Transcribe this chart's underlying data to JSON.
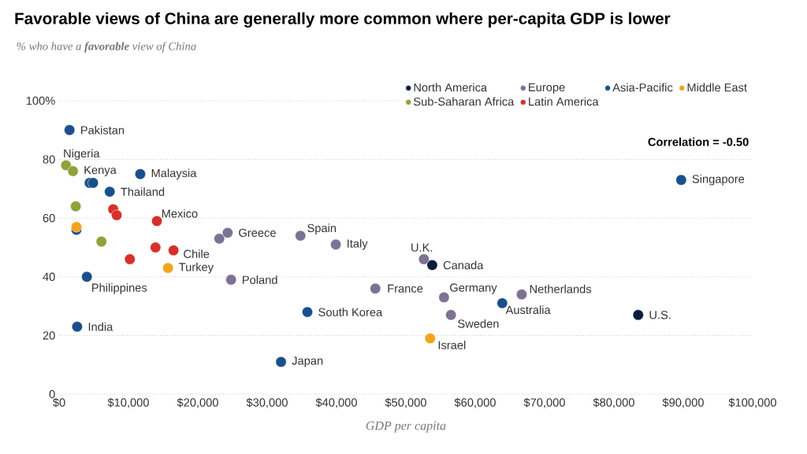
{
  "chart_data": {
    "type": "scatter",
    "title": "Favorable views of China are generally more common where per-capita GDP is lower",
    "subtitle": "% who have a **favorable** view of China",
    "xlabel": "GDP per capita",
    "xlim": [
      0,
      100000
    ],
    "xticks": [
      {
        "value": 0,
        "label": "$0"
      },
      {
        "value": 10000,
        "label": "$10,000"
      },
      {
        "value": 20000,
        "label": "$20,000"
      },
      {
        "value": 30000,
        "label": "$30,000"
      },
      {
        "value": 40000,
        "label": "$40,000"
      },
      {
        "value": 50000,
        "label": "$50,000"
      },
      {
        "value": 60000,
        "label": "$60,000"
      },
      {
        "value": 70000,
        "label": "$70,000"
      },
      {
        "value": 80000,
        "label": "$80,000"
      },
      {
        "value": 90000,
        "label": "$90,000"
      },
      {
        "value": 100000,
        "label": "$100,000"
      }
    ],
    "ylim": [
      0,
      100
    ],
    "yticks": [
      0,
      20,
      40,
      60,
      80,
      {
        "value": 100,
        "label": "100%"
      }
    ],
    "grid": "y",
    "legend": "top right",
    "series": [
      {
        "name": "North America",
        "color": "#0c1d3c",
        "x": [
          53800,
          83500
        ],
        "values": [
          44,
          27
        ]
      },
      {
        "name": "Europe",
        "color": "#7d7194",
        "x": [
          52600,
          23100,
          24300,
          34800,
          39900,
          24800,
          45600,
          55500,
          56500,
          66700
        ],
        "values": [
          46,
          53,
          55,
          54,
          51,
          39,
          36,
          33,
          27,
          34
        ]
      },
      {
        "name": "Asia-Pacific",
        "color": "#1a4f8c",
        "x": [
          1500,
          11700,
          4400,
          4900,
          7300,
          2500,
          4000,
          2600,
          32000,
          35800,
          63900,
          89700
        ],
        "values": [
          90,
          75,
          72,
          72,
          69,
          56,
          40,
          23,
          11,
          28,
          31,
          73
        ]
      },
      {
        "name": "Middle East",
        "color": "#f4a31c",
        "x": [
          2500,
          15700,
          53500
        ],
        "values": [
          57,
          43,
          19
        ]
      },
      {
        "name": "Sub-Saharan Africa",
        "color": "#8fa23b",
        "x": [
          1000,
          2000,
          2400,
          6100
        ],
        "values": [
          78,
          76,
          64,
          52
        ]
      },
      {
        "name": "Latin America",
        "color": "#d7302a",
        "x": [
          7800,
          8300,
          14100,
          13900,
          16500,
          10200
        ],
        "values": [
          63,
          61,
          59,
          50,
          49,
          46
        ]
      }
    ],
    "annotations": [
      "Correlation = -0.50",
      {
        "text": "Pakistan",
        "x": 1500,
        "y": 90
      },
      {
        "text": "Nigeria",
        "x": 1000,
        "y": 78
      },
      {
        "text": "Kenya",
        "x": 2000,
        "y": 76
      },
      {
        "text": "Malaysia",
        "x": 11700,
        "y": 75
      },
      {
        "text": "Thailand",
        "x": 7300,
        "y": 69
      },
      {
        "text": "Mexico",
        "x": 14100,
        "y": 59
      },
      {
        "text": "Greece",
        "x": 24300,
        "y": 55
      },
      {
        "text": "Spain",
        "x": 34800,
        "y": 54
      },
      {
        "text": "Italy",
        "x": 39900,
        "y": 51
      },
      {
        "text": "Chile",
        "x": 16500,
        "y": 49
      },
      {
        "text": "Turkey",
        "x": 15700,
        "y": 43
      },
      {
        "text": "Poland",
        "x": 24800,
        "y": 39
      },
      {
        "text": "Philippines",
        "x": 4000,
        "y": 40
      },
      {
        "text": "India",
        "x": 2600,
        "y": 23
      },
      {
        "text": "U.K.",
        "x": 52600,
        "y": 46
      },
      {
        "text": "Canada",
        "x": 53800,
        "y": 44
      },
      {
        "text": "France",
        "x": 45600,
        "y": 36
      },
      {
        "text": "Germany",
        "x": 55500,
        "y": 33
      },
      {
        "text": "Netherlands",
        "x": 66700,
        "y": 34
      },
      {
        "text": "Australia",
        "x": 63900,
        "y": 31
      },
      {
        "text": "Sweden",
        "x": 56500,
        "y": 27
      },
      {
        "text": "South Korea",
        "x": 35800,
        "y": 28
      },
      {
        "text": "Japan",
        "x": 32000,
        "y": 11
      },
      {
        "text": "Israel",
        "x": 53500,
        "y": 19
      },
      {
        "text": "U.S.",
        "x": 83500,
        "y": 27
      },
      {
        "text": "Singapore",
        "x": 89700,
        "y": 73
      }
    ]
  }
}
